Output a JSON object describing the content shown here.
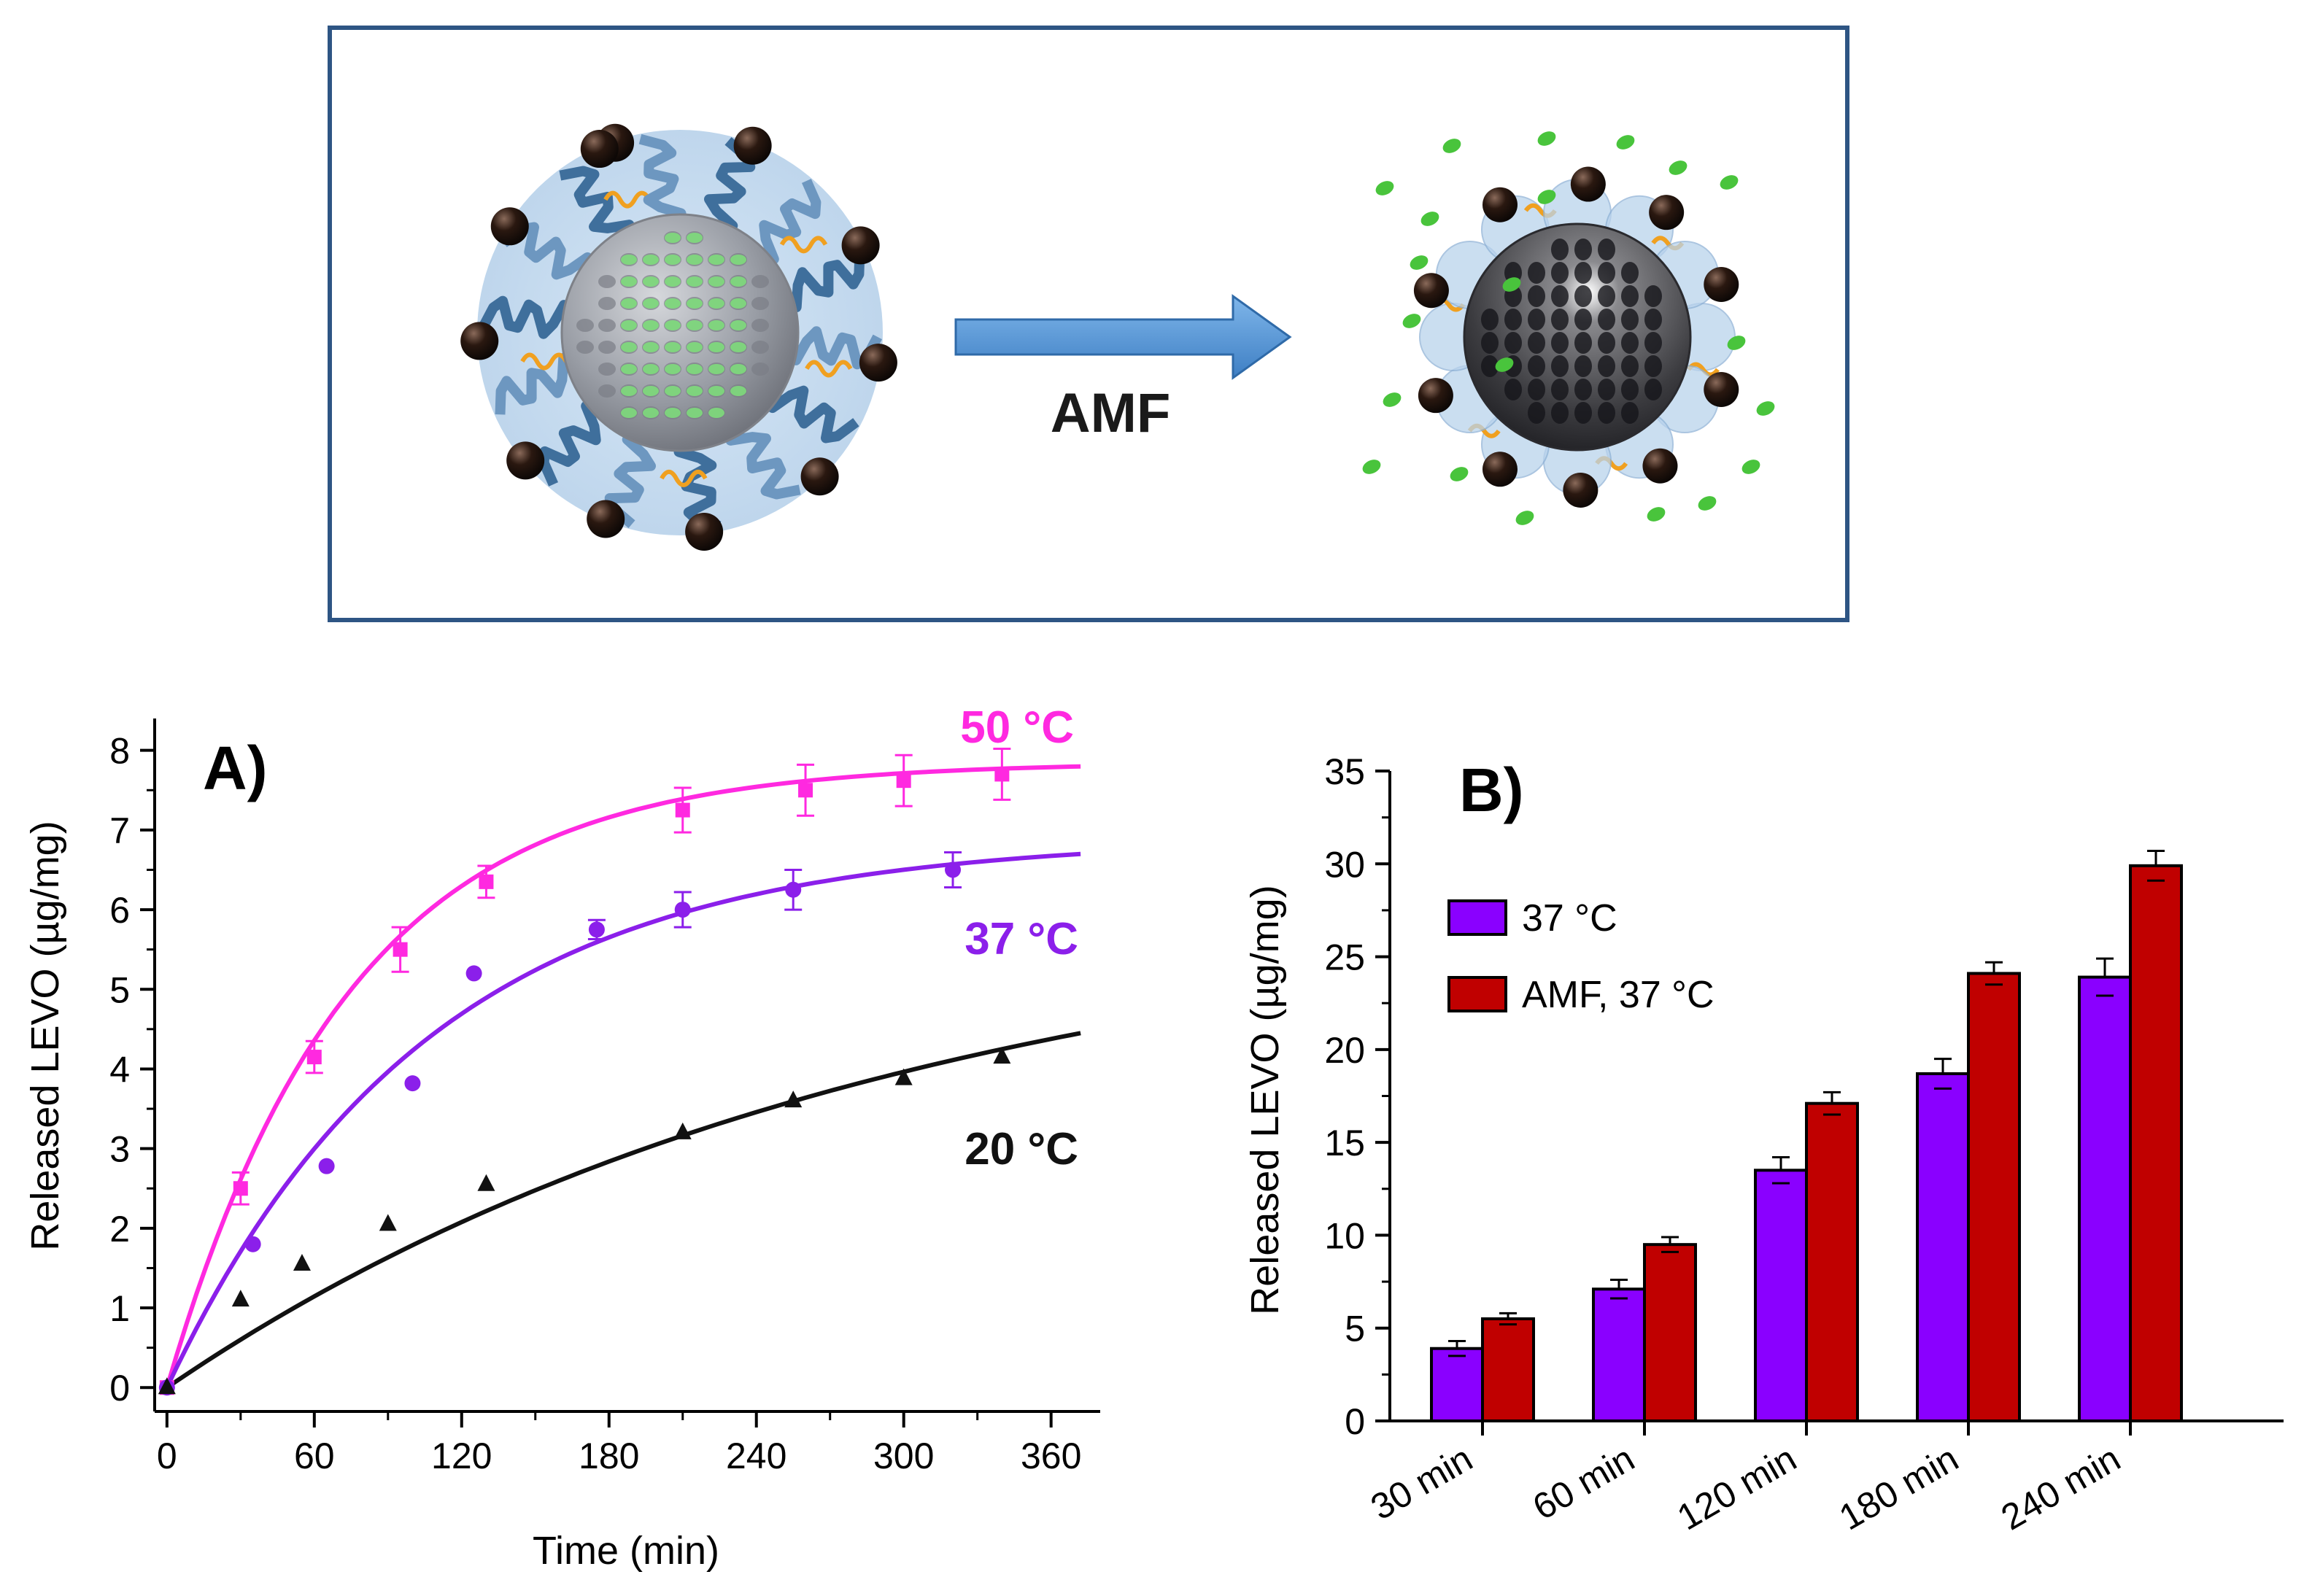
{
  "schematic": {
    "arrow_label": "AMF"
  },
  "colors": {
    "c50": "#ff29e0",
    "c37": "#8b1fea",
    "c20": "#111111",
    "bar37": "#8a00ff",
    "barAMF": "#c00000",
    "frame": "#2e5584",
    "arrow": "#4f93d6"
  },
  "chart_data": [
    {
      "type": "scatter",
      "panel_label": "A)",
      "xlabel": "Time (min)",
      "ylabel": "Released LEVO (µg/mg)",
      "xlim": [
        -5,
        380
      ],
      "ylim": [
        -0.3,
        8.4
      ],
      "xticks": [
        0,
        60,
        120,
        180,
        240,
        300,
        360
      ],
      "yticks": [
        0,
        1,
        2,
        3,
        4,
        5,
        6,
        7,
        8
      ],
      "series": [
        {
          "name": "50 °C",
          "marker": "square",
          "color": "#ff29e0",
          "x": [
            0,
            30,
            60,
            95,
            130,
            210,
            260,
            300,
            340
          ],
          "y": [
            0,
            2.5,
            4.15,
            5.5,
            6.35,
            7.25,
            7.5,
            7.62,
            7.7
          ],
          "err": [
            0.05,
            0.2,
            0.2,
            0.28,
            0.2,
            0.28,
            0.32,
            0.32,
            0.32
          ],
          "fit": {
            "a": 7.85,
            "k": 0.0135
          }
        },
        {
          "name": "37 °C",
          "marker": "circle",
          "color": "#8b1fea",
          "x": [
            0,
            35,
            65,
            100,
            125,
            175,
            210,
            255,
            320
          ],
          "y": [
            0,
            1.8,
            2.78,
            3.82,
            5.2,
            5.75,
            6.0,
            6.25,
            6.5
          ],
          "err": [
            0.05,
            0.0,
            0.0,
            0.0,
            0.0,
            0.12,
            0.22,
            0.25,
            0.22
          ],
          "fit": {
            "a": 6.9,
            "k": 0.0095
          }
        },
        {
          "name": "20 °C",
          "marker": "triangle",
          "color": "#111111",
          "x": [
            0,
            30,
            55,
            90,
            130,
            210,
            255,
            300,
            340
          ],
          "y": [
            0,
            1.1,
            1.55,
            2.05,
            2.55,
            3.2,
            3.6,
            3.88,
            4.15
          ],
          "err": [
            0.05,
            0.0,
            0.0,
            0.0,
            0.0,
            0.0,
            0.0,
            0.0,
            0.0
          ],
          "fit": {
            "a": 6.2,
            "k": 0.0034
          }
        }
      ],
      "labels": [
        "50 °C",
        "37 °C",
        "20 °C"
      ]
    },
    {
      "type": "bar",
      "panel_label": "B)",
      "xlabel": "",
      "ylabel": "Released LEVO (µg/mg)",
      "categories": [
        "30 min",
        "60 min",
        "120 min",
        "180 min",
        "240 min"
      ],
      "ylim": [
        0,
        35
      ],
      "yticks": [
        0,
        5,
        10,
        15,
        20,
        25,
        30,
        35
      ],
      "series": [
        {
          "name": "37 °C",
          "color": "#8a00ff",
          "values": [
            3.9,
            7.1,
            13.5,
            18.7,
            23.9
          ],
          "err": [
            0.4,
            0.5,
            0.7,
            0.8,
            1.0
          ]
        },
        {
          "name": "AMF, 37 °C",
          "color": "#c00000",
          "values": [
            5.5,
            9.5,
            17.1,
            24.1,
            29.9
          ],
          "err": [
            0.3,
            0.4,
            0.6,
            0.6,
            0.8
          ]
        }
      ],
      "legend": "top-left"
    }
  ]
}
